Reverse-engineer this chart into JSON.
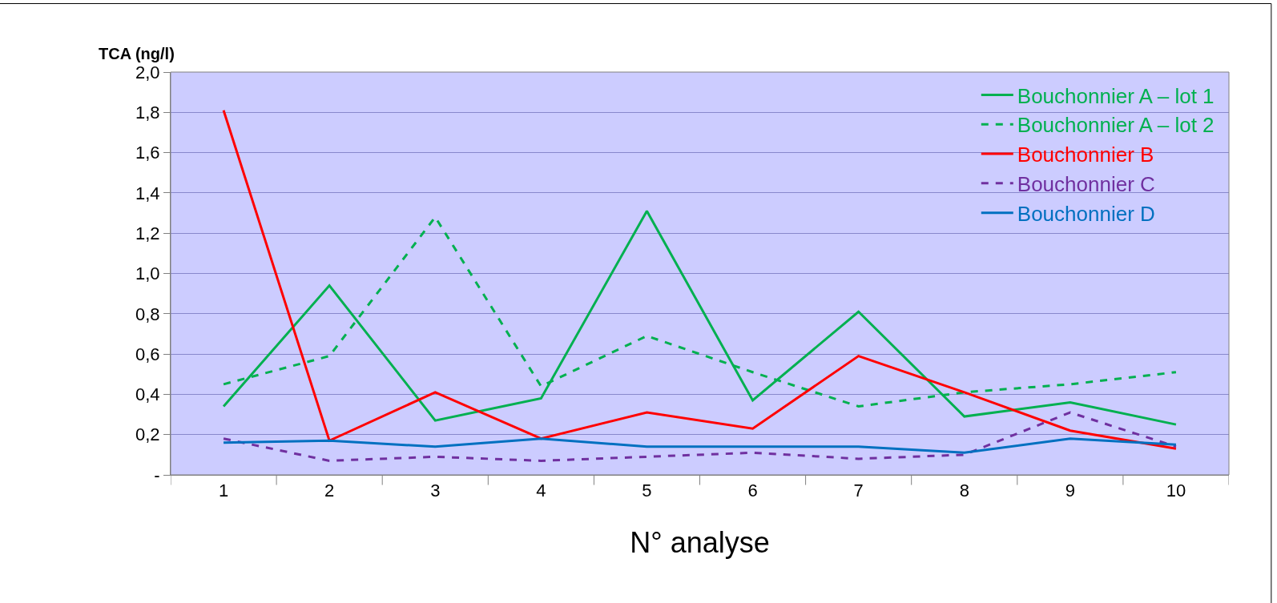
{
  "chart_data": {
    "type": "line",
    "ylabel": "TCA (ng/l)",
    "xlabel": "N° analyse",
    "categories": [
      "1",
      "2",
      "3",
      "4",
      "5",
      "6",
      "7",
      "8",
      "9",
      "10"
    ],
    "series": [
      {
        "name": "Bouchonnier A – lot 1",
        "color": "#00b050",
        "line_style": "solid",
        "values": [
          0.34,
          0.94,
          0.27,
          0.38,
          1.31,
          0.37,
          0.81,
          0.29,
          0.36,
          0.25
        ]
      },
      {
        "name": "Bouchonnier A – lot 2",
        "color": "#00b050",
        "line_style": "dashed",
        "values": [
          0.45,
          0.59,
          1.28,
          0.44,
          0.69,
          0.51,
          0.34,
          0.41,
          0.45,
          0.51
        ]
      },
      {
        "name": "Bouchonnier B",
        "color": "#ff0000",
        "line_style": "solid",
        "values": [
          1.81,
          0.17,
          0.41,
          0.18,
          0.31,
          0.23,
          0.59,
          0.41,
          0.22,
          0.13
        ]
      },
      {
        "name": "Bouchonnier C",
        "color": "#7030a0",
        "line_style": "dashed",
        "values": [
          0.18,
          0.07,
          0.09,
          0.07,
          0.09,
          0.11,
          0.08,
          0.1,
          0.31,
          0.14
        ]
      },
      {
        "name": "Bouchonnier D",
        "color": "#0070c0",
        "line_style": "solid",
        "values": [
          0.16,
          0.17,
          0.14,
          0.18,
          0.14,
          0.14,
          0.14,
          0.11,
          0.18,
          0.15
        ]
      }
    ],
    "ylim": [
      0,
      2.0
    ],
    "yticks": [
      {
        "value": 0,
        "label": "-"
      },
      {
        "value": 0.2,
        "label": "0,2"
      },
      {
        "value": 0.4,
        "label": "0,4"
      },
      {
        "value": 0.6,
        "label": "0,6"
      },
      {
        "value": 0.8,
        "label": "0,8"
      },
      {
        "value": 1.0,
        "label": "1,0"
      },
      {
        "value": 1.2,
        "label": "1,2"
      },
      {
        "value": 1.4,
        "label": "1,4"
      },
      {
        "value": 1.6,
        "label": "1,6"
      },
      {
        "value": 1.8,
        "label": "1,8"
      },
      {
        "value": 2.0,
        "label": "2,0"
      }
    ],
    "grid": "y",
    "legend": "top right",
    "marker": "none"
  }
}
